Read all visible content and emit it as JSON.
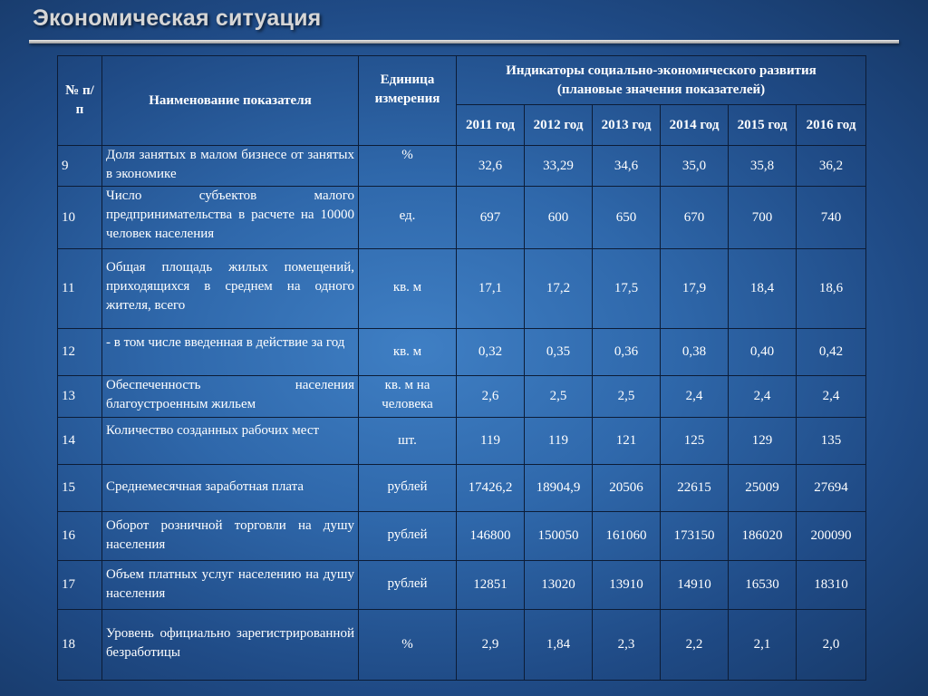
{
  "slide": {
    "title": "Экономическая ситуация"
  },
  "table": {
    "headers": {
      "num": "№ п/п",
      "name": "Наименование показателя",
      "unit": "Единица измерения",
      "group_line1": "Индикаторы социально-экономического развития",
      "group_line2": "(плановые значения показателей)",
      "years": [
        "2011 год",
        "2012 год",
        "2013 год",
        "2014 год",
        "2015 год",
        "2016 год"
      ]
    },
    "rows": [
      {
        "num": "9",
        "name": "Доля занятых в малом бизнесе от занятых в экономике",
        "unit": "%",
        "values": [
          "32,6",
          "33,29",
          "34,6",
          "35,0",
          "35,8",
          "36,2"
        ]
      },
      {
        "num": "10",
        "name": "Число субъектов малого предпринимательства в расчете на 10000 человек населения",
        "unit": "ед.",
        "values": [
          "697",
          "600",
          "650",
          "670",
          "700",
          "740"
        ]
      },
      {
        "num": "11",
        "name": "Общая площадь жилых помещений, приходящихся в среднем на одного жителя, всего",
        "unit": "кв. м",
        "values": [
          "17,1",
          "17,2",
          "17,5",
          "17,9",
          "18,4",
          "18,6"
        ]
      },
      {
        "num": "12",
        "name": "- в том числе введенная в действие за год",
        "unit": "кв. м",
        "values": [
          "0,32",
          "0,35",
          "0,36",
          "0,38",
          "0,40",
          "0,42"
        ]
      },
      {
        "num": "13",
        "name": "Обеспеченность населения благоустроенным жильем",
        "unit": "кв. м на человека",
        "values": [
          "2,6",
          "2,5",
          "2,5",
          "2,4",
          "2,4",
          "2,4"
        ]
      },
      {
        "num": "14",
        "name": "Количество созданных рабочих мест",
        "unit": "шт.",
        "values": [
          "119",
          "119",
          "121",
          "125",
          "129",
          "135"
        ]
      },
      {
        "num": "15",
        "name": "Среднемесячная заработная плата",
        "unit": "рублей",
        "values": [
          "17426,2",
          "18904,9",
          "20506",
          "22615",
          "25009",
          "27694"
        ]
      },
      {
        "num": "16",
        "name": "Оборот розничной торговли на душу населения",
        "unit": "рублей",
        "values": [
          "146800",
          "150050",
          "161060",
          "173150",
          "186020",
          "200090"
        ]
      },
      {
        "num": "17",
        "name": "Объем платных услуг населению на душу населения",
        "unit": "рублей",
        "values": [
          "12851",
          "13020",
          "13910",
          "14910",
          "16530",
          "18310"
        ]
      },
      {
        "num": "18",
        "name": "Уровень официально зарегистрированной безработицы",
        "unit": "%",
        "values": [
          "2,9",
          "1,84",
          "2,3",
          "2,2",
          "2,1",
          "2,0"
        ]
      }
    ]
  }
}
